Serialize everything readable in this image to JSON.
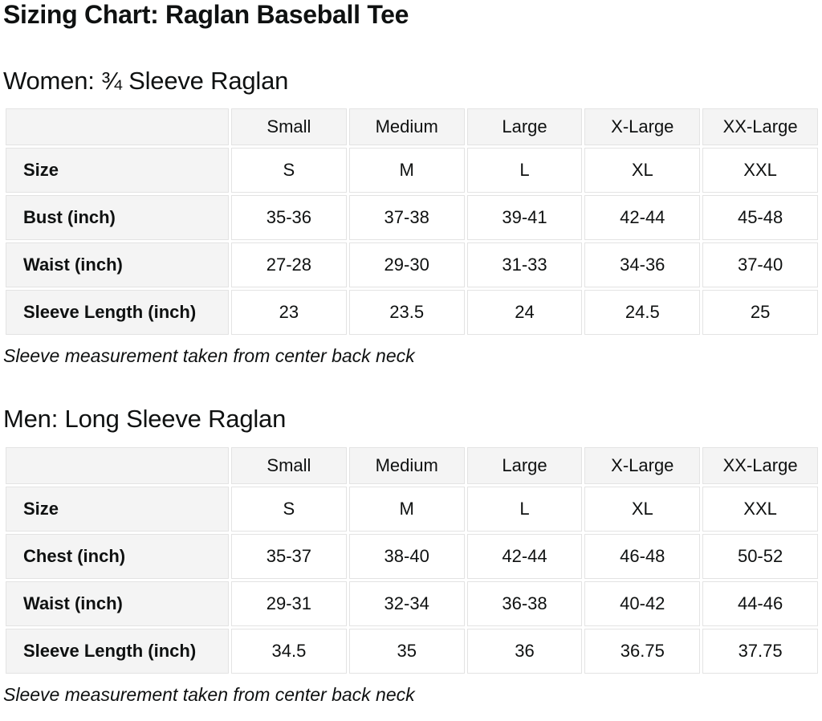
{
  "page": {
    "title": "Sizing Chart: Raglan Baseball Tee"
  },
  "colors": {
    "cell_header_bg": "#f4f4f4",
    "cell_border": "#e3e3e3",
    "text": "#0f1111",
    "background": "#ffffff"
  },
  "sections": [
    {
      "heading": "Women: ¾ Sleeve Raglan",
      "note": "Sleeve measurement taken from center back neck",
      "table": {
        "columns": [
          "",
          "Small",
          "Medium",
          "Large",
          "X-Large",
          "XX-Large"
        ],
        "rows": [
          {
            "label": "Size",
            "values": [
              "S",
              "M",
              "L",
              "XL",
              "XXL"
            ]
          },
          {
            "label": "Bust (inch)",
            "values": [
              "35-36",
              "37-38",
              "39-41",
              "42-44",
              "45-48"
            ]
          },
          {
            "label": "Waist (inch)",
            "values": [
              "27-28",
              "29-30",
              "31-33",
              "34-36",
              "37-40"
            ]
          },
          {
            "label": "Sleeve Length (inch)",
            "values": [
              "23",
              "23.5",
              "24",
              "24.5",
              "25"
            ]
          }
        ]
      }
    },
    {
      "heading": "Men: Long Sleeve Raglan",
      "note": "Sleeve measurement taken from center back neck",
      "table": {
        "columns": [
          "",
          "Small",
          "Medium",
          "Large",
          "X-Large",
          "XX-Large"
        ],
        "rows": [
          {
            "label": "Size",
            "values": [
              "S",
              "M",
              "L",
              "XL",
              "XXL"
            ]
          },
          {
            "label": "Chest (inch)",
            "values": [
              "35-37",
              "38-40",
              "42-44",
              "46-48",
              "50-52"
            ]
          },
          {
            "label": "Waist (inch)",
            "values": [
              "29-31",
              "32-34",
              "36-38",
              "40-42",
              "44-46"
            ]
          },
          {
            "label": "Sleeve Length (inch)",
            "values": [
              "34.5",
              "35",
              "36",
              "36.75",
              "37.75"
            ]
          }
        ]
      }
    }
  ]
}
